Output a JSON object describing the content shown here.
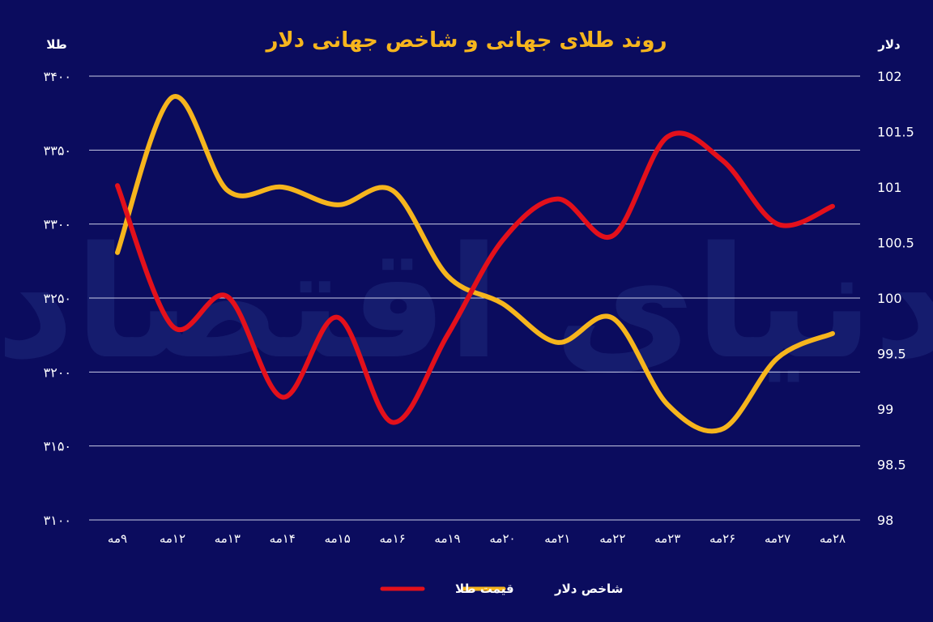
{
  "chart_data": {
    "type": "line",
    "title": "روند طلای جهانی و شاخص جهانی دلار",
    "left_axis_label": "طلا",
    "right_axis_label": "دلار",
    "left_ylim": [
      3100,
      3400
    ],
    "left_ticks": [
      "۳۱۰۰",
      "۳۱۵۰",
      "۳۲۰۰",
      "۳۲۵۰",
      "۳۳۰۰",
      "۳۳۵۰",
      "۳۴۰۰"
    ],
    "right_ylim": [
      98,
      102
    ],
    "right_ticks": [
      "98",
      "98.5",
      "99",
      "99.5",
      "100",
      "100.5",
      "101",
      "101.5",
      "102"
    ],
    "categories": [
      "۹مه",
      "۱۲مه",
      "۱۳مه",
      "۱۴مه",
      "۱۵مه",
      "۱۶مه",
      "۱۹مه",
      "۲۰مه",
      "۲۱مه",
      "۲۲مه",
      "۲۳مه",
      "۲۶مه",
      "۲۷مه",
      "۲۸مه"
    ],
    "grid": true,
    "legend_position": "bottom-center",
    "watermark": "دنیای اقتصاد",
    "series": [
      {
        "name": "قیمت طلا",
        "axis": "left",
        "color": "#e3101b",
        "values": [
          3326,
          3231,
          3251,
          3183,
          3237,
          3166,
          3225,
          3289,
          3317,
          3292,
          3359,
          3343,
          3300,
          3312
        ]
      },
      {
        "name": "شاخص دلار",
        "axis": "right",
        "color": "#f6b51d",
        "values": [
          100.41,
          101.81,
          100.97,
          101.0,
          100.84,
          100.97,
          100.2,
          99.95,
          99.6,
          99.82,
          99.04,
          98.82,
          99.46,
          99.68
        ]
      }
    ]
  }
}
